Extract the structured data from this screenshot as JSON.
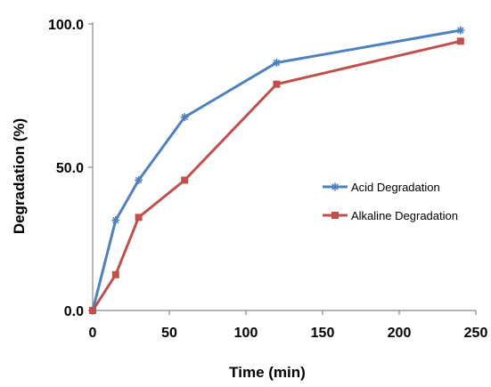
{
  "chart_data": {
    "type": "line",
    "title": "",
    "xlabel": "Time (min)",
    "ylabel": "Degradation (%)",
    "xlim": [
      0,
      250
    ],
    "ylim": [
      0,
      100
    ],
    "xticks": [
      0,
      50,
      100,
      150,
      200,
      250
    ],
    "xtick_labels": [
      "0",
      "50",
      "100",
      "150",
      "200",
      "250"
    ],
    "yticks": [
      0,
      50,
      100
    ],
    "ytick_labels": [
      "0.0",
      "50.0",
      "100.0"
    ],
    "grid": false,
    "legend_position": "right",
    "series": [
      {
        "name": "Acid Degradation",
        "color": "#4f81bd",
        "marker": "asterisk",
        "x": [
          0,
          15,
          30,
          60,
          120,
          240
        ],
        "y": [
          0,
          31.5,
          45.5,
          67.5,
          86.5,
          97.8
        ]
      },
      {
        "name": "Alkaline Degradation",
        "color": "#c0504d",
        "marker": "square",
        "x": [
          0,
          15,
          30,
          60,
          120,
          240
        ],
        "y": [
          0,
          12.5,
          32.5,
          45.5,
          79,
          94
        ]
      }
    ]
  }
}
